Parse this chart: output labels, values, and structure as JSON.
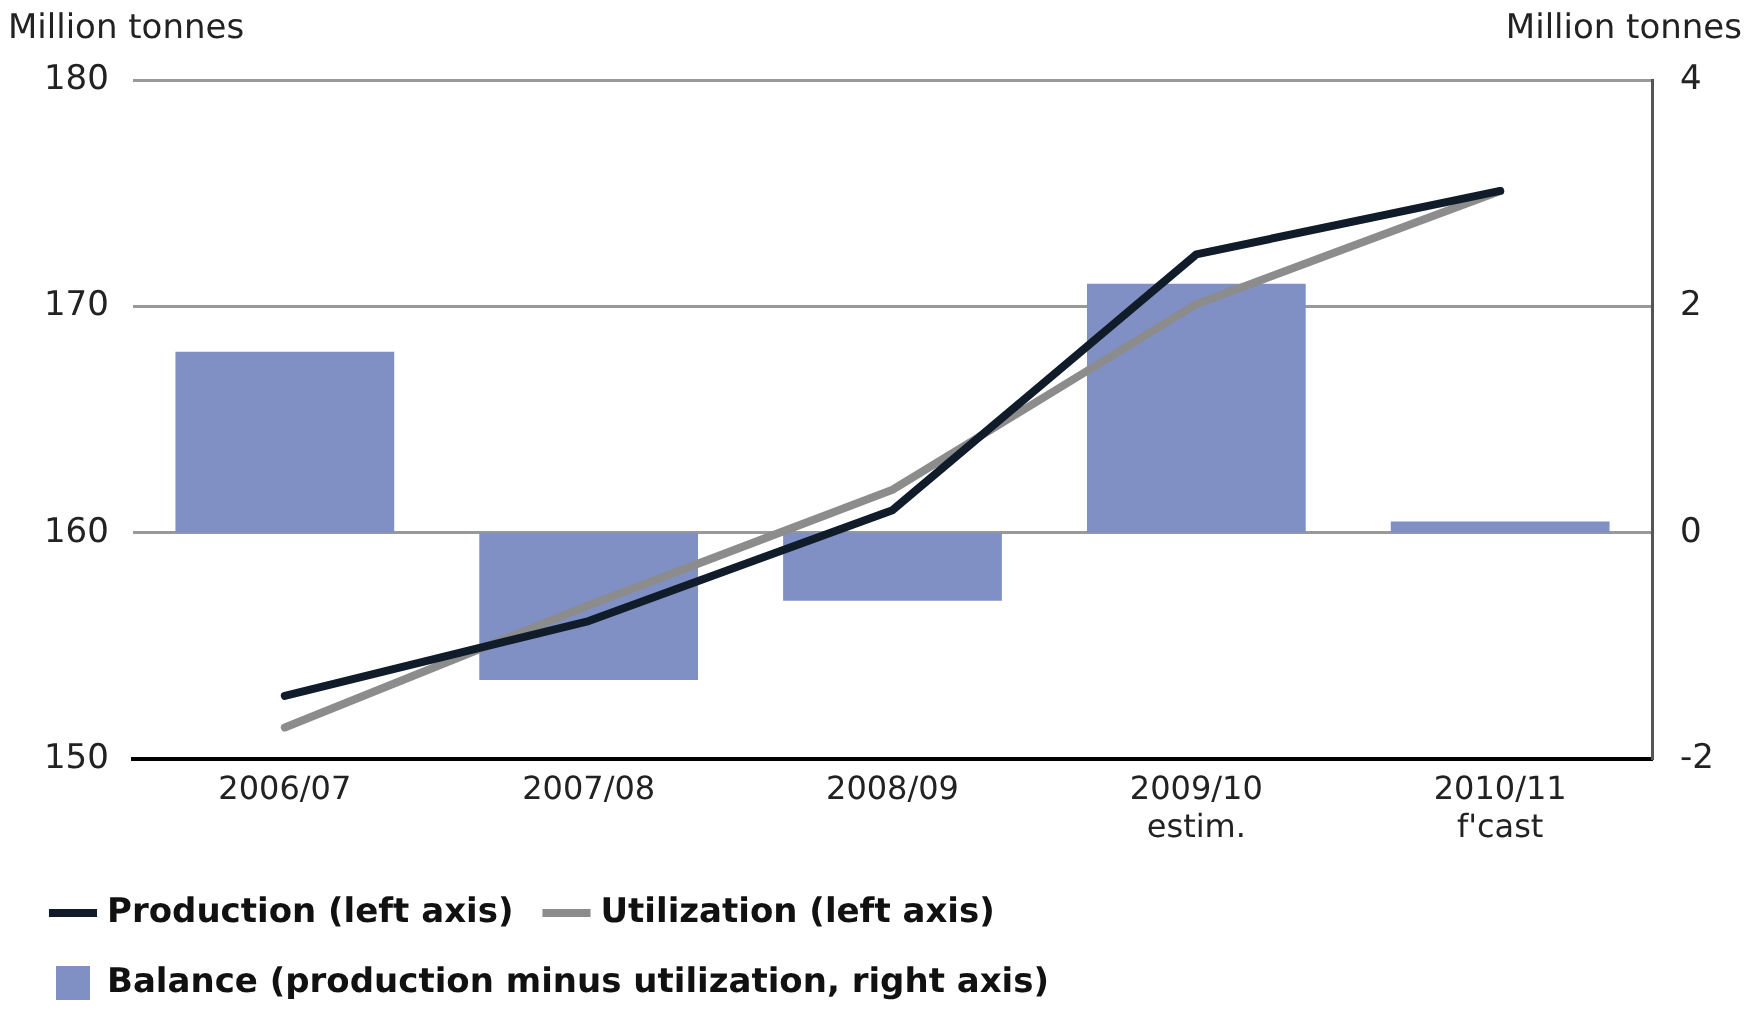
{
  "chart_data": {
    "type": "bar",
    "ylabel": "Million tonnes",
    "y2label": "Million tonnes",
    "categories": [
      "2006/07",
      "2007/08",
      "2008/09",
      "2009/10\nestim.",
      "2010/11\nf'cast"
    ],
    "series": [
      {
        "name": "Production (left axis)",
        "type": "line",
        "color": "#111c2b",
        "values": [
          152.8,
          156.1,
          161.0,
          172.3,
          175.1
        ]
      },
      {
        "name": "Utilization (left axis)",
        "type": "line",
        "color": "#8c8c8c",
        "values": [
          151.4,
          156.8,
          161.9,
          170.1,
          175.1
        ]
      },
      {
        "name": "Balance (production minus utilization, right axis)",
        "axis": "y2",
        "color": "#8190c4",
        "values": [
          1.6,
          -1.3,
          -0.6,
          2.2,
          0.1
        ]
      }
    ],
    "ylim": [
      150,
      180
    ],
    "yticks": [
      150,
      160,
      170,
      180
    ],
    "y2lim": [
      -2,
      4
    ],
    "y2ticks": [
      -2,
      0,
      2,
      4
    ],
    "grid": "y",
    "legend": "bottom",
    "marker": "none"
  }
}
